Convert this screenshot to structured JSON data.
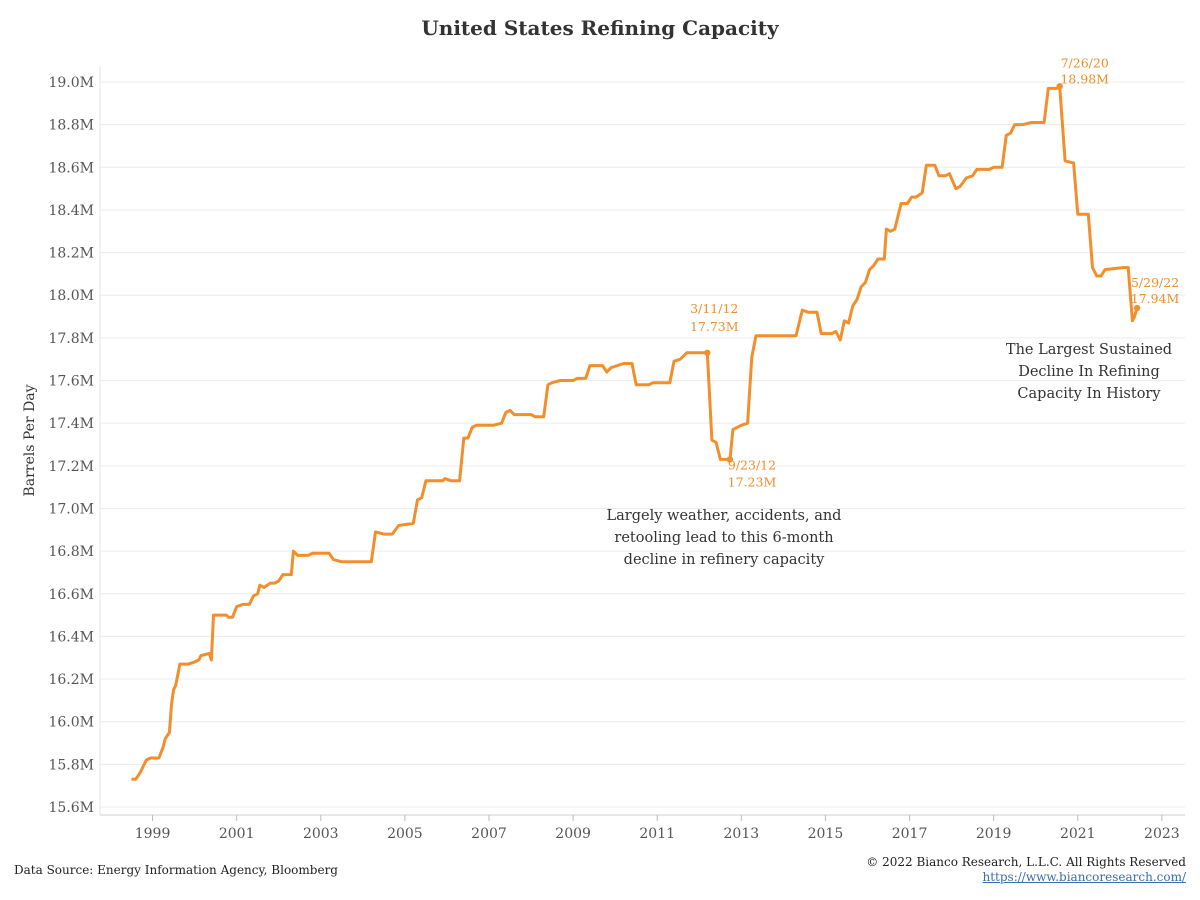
{
  "title": "United States Refining Capacity",
  "footer": {
    "source": "Data Source: Energy Information Agency, Bloomberg",
    "copyright": "© 2022 Bianco Research, L.L.C. All Rights Reserved",
    "url": "https://www.biancoresearch.com/"
  },
  "chart_data": {
    "type": "line",
    "title": "United States Refining Capacity",
    "xlabel": "",
    "ylabel": "Barrels Per Day",
    "ylim": [
      15.6,
      19.0
    ],
    "xlim": [
      1997.75,
      2023.55
    ],
    "x_ticks": [
      1999,
      2001,
      2003,
      2005,
      2007,
      2009,
      2011,
      2013,
      2015,
      2017,
      2019,
      2021,
      2023
    ],
    "y_ticks": [
      15.6,
      15.8,
      16.0,
      16.2,
      16.4,
      16.6,
      16.8,
      17.0,
      17.2,
      17.4,
      17.6,
      17.8,
      18.0,
      18.2,
      18.4,
      18.6,
      18.8,
      19.0
    ],
    "y_tick_labels": [
      "15.6M",
      "15.8M",
      "16.0M",
      "16.2M",
      "16.4M",
      "16.6M",
      "16.8M",
      "17.0M",
      "17.2M",
      "17.4M",
      "17.6M",
      "17.8M",
      "18.0M",
      "18.2M",
      "18.4M",
      "18.6M",
      "18.8M",
      "19.0M"
    ],
    "grid": true,
    "color": "#f28e2b",
    "series": [
      {
        "name": "",
        "points": [
          [
            1998.5,
            15.73
          ],
          [
            1998.6,
            15.73
          ],
          [
            1998.7,
            15.76
          ],
          [
            1998.85,
            15.82
          ],
          [
            1998.95,
            15.83
          ],
          [
            1999.15,
            15.83
          ],
          [
            1999.25,
            15.88
          ],
          [
            1999.3,
            15.92
          ],
          [
            1999.4,
            15.95
          ],
          [
            1999.45,
            16.08
          ],
          [
            1999.5,
            16.15
          ],
          [
            1999.55,
            16.17
          ],
          [
            1999.65,
            16.27
          ],
          [
            1999.85,
            16.27
          ],
          [
            2000.0,
            16.28
          ],
          [
            2000.1,
            16.29
          ],
          [
            2000.15,
            16.31
          ],
          [
            2000.35,
            16.32
          ],
          [
            2000.4,
            16.29
          ],
          [
            2000.45,
            16.5
          ],
          [
            2000.75,
            16.5
          ],
          [
            2000.8,
            16.49
          ],
          [
            2000.9,
            16.49
          ],
          [
            2001.0,
            16.54
          ],
          [
            2001.15,
            16.55
          ],
          [
            2001.3,
            16.55
          ],
          [
            2001.4,
            16.59
          ],
          [
            2001.5,
            16.6
          ],
          [
            2001.55,
            16.64
          ],
          [
            2001.65,
            16.63
          ],
          [
            2001.8,
            16.65
          ],
          [
            2001.9,
            16.65
          ],
          [
            2002.0,
            16.66
          ],
          [
            2002.1,
            16.69
          ],
          [
            2002.3,
            16.69
          ],
          [
            2002.35,
            16.8
          ],
          [
            2002.45,
            16.78
          ],
          [
            2002.7,
            16.78
          ],
          [
            2002.8,
            16.79
          ],
          [
            2003.2,
            16.79
          ],
          [
            2003.3,
            16.76
          ],
          [
            2003.5,
            16.75
          ],
          [
            2004.1,
            16.75
          ],
          [
            2004.2,
            16.75
          ],
          [
            2004.3,
            16.89
          ],
          [
            2004.5,
            16.88
          ],
          [
            2004.7,
            16.88
          ],
          [
            2004.85,
            16.92
          ],
          [
            2005.2,
            16.93
          ],
          [
            2005.3,
            17.04
          ],
          [
            2005.4,
            17.05
          ],
          [
            2005.5,
            17.13
          ],
          [
            2005.9,
            17.13
          ],
          [
            2005.95,
            17.14
          ],
          [
            2006.1,
            17.13
          ],
          [
            2006.3,
            17.13
          ],
          [
            2006.4,
            17.33
          ],
          [
            2006.5,
            17.33
          ],
          [
            2006.6,
            17.38
          ],
          [
            2006.7,
            17.39
          ],
          [
            2007.0,
            17.39
          ],
          [
            2007.1,
            17.39
          ],
          [
            2007.3,
            17.4
          ],
          [
            2007.4,
            17.45
          ],
          [
            2007.5,
            17.46
          ],
          [
            2007.6,
            17.44
          ],
          [
            2008.0,
            17.44
          ],
          [
            2008.1,
            17.43
          ],
          [
            2008.3,
            17.43
          ],
          [
            2008.4,
            17.58
          ],
          [
            2008.5,
            17.59
          ],
          [
            2008.7,
            17.6
          ],
          [
            2009.0,
            17.6
          ],
          [
            2009.1,
            17.61
          ],
          [
            2009.3,
            17.61
          ],
          [
            2009.4,
            17.67
          ],
          [
            2009.7,
            17.67
          ],
          [
            2009.8,
            17.64
          ],
          [
            2009.9,
            17.66
          ],
          [
            2010.2,
            17.68
          ],
          [
            2010.4,
            17.68
          ],
          [
            2010.5,
            17.58
          ],
          [
            2010.8,
            17.58
          ],
          [
            2010.9,
            17.59
          ],
          [
            2011.3,
            17.59
          ],
          [
            2011.4,
            17.69
          ],
          [
            2011.55,
            17.7
          ],
          [
            2011.7,
            17.73
          ],
          [
            2012.19,
            17.73
          ],
          [
            2012.3,
            17.32
          ],
          [
            2012.4,
            17.31
          ],
          [
            2012.5,
            17.23
          ],
          [
            2012.73,
            17.23
          ],
          [
            2012.8,
            17.37
          ],
          [
            2012.9,
            17.38
          ],
          [
            2013.0,
            17.39
          ],
          [
            2013.15,
            17.4
          ],
          [
            2013.25,
            17.71
          ],
          [
            2013.35,
            17.81
          ],
          [
            2013.5,
            17.81
          ],
          [
            2013.7,
            17.81
          ],
          [
            2013.9,
            17.81
          ],
          [
            2014.3,
            17.81
          ],
          [
            2014.45,
            17.93
          ],
          [
            2014.6,
            17.92
          ],
          [
            2014.8,
            17.92
          ],
          [
            2014.9,
            17.82
          ],
          [
            2015.15,
            17.82
          ],
          [
            2015.25,
            17.83
          ],
          [
            2015.35,
            17.79
          ],
          [
            2015.45,
            17.88
          ],
          [
            2015.55,
            17.87
          ],
          [
            2015.65,
            17.95
          ],
          [
            2015.75,
            17.98
          ],
          [
            2015.85,
            18.04
          ],
          [
            2015.95,
            18.06
          ],
          [
            2016.05,
            18.12
          ],
          [
            2016.15,
            18.14
          ],
          [
            2016.25,
            18.17
          ],
          [
            2016.4,
            18.17
          ],
          [
            2016.45,
            18.31
          ],
          [
            2016.55,
            18.3
          ],
          [
            2016.65,
            18.31
          ],
          [
            2016.8,
            18.43
          ],
          [
            2016.95,
            18.43
          ],
          [
            2017.05,
            18.46
          ],
          [
            2017.15,
            18.46
          ],
          [
            2017.3,
            18.48
          ],
          [
            2017.4,
            18.61
          ],
          [
            2017.6,
            18.61
          ],
          [
            2017.7,
            18.56
          ],
          [
            2017.85,
            18.56
          ],
          [
            2017.95,
            18.57
          ],
          [
            2018.1,
            18.5
          ],
          [
            2018.2,
            18.51
          ],
          [
            2018.35,
            18.55
          ],
          [
            2018.5,
            18.56
          ],
          [
            2018.6,
            18.59
          ],
          [
            2018.9,
            18.59
          ],
          [
            2019.0,
            18.6
          ],
          [
            2019.2,
            18.6
          ],
          [
            2019.3,
            18.75
          ],
          [
            2019.4,
            18.76
          ],
          [
            2019.5,
            18.8
          ],
          [
            2019.7,
            18.8
          ],
          [
            2019.9,
            18.81
          ],
          [
            2020.1,
            18.81
          ],
          [
            2020.2,
            18.81
          ],
          [
            2020.3,
            18.97
          ],
          [
            2020.5,
            18.97
          ],
          [
            2020.57,
            18.98
          ],
          [
            2020.7,
            18.63
          ],
          [
            2020.9,
            18.62
          ],
          [
            2021.0,
            18.38
          ],
          [
            2021.25,
            18.38
          ],
          [
            2021.35,
            18.13
          ],
          [
            2021.45,
            18.09
          ],
          [
            2021.55,
            18.09
          ],
          [
            2021.65,
            18.12
          ],
          [
            2022.1,
            18.13
          ],
          [
            2022.2,
            18.13
          ],
          [
            2022.3,
            17.88
          ],
          [
            2022.35,
            17.9
          ],
          [
            2022.41,
            17.94
          ]
        ]
      }
    ],
    "markers": [
      {
        "x": 2012.19,
        "y": 17.73,
        "label_date": "3/11/12",
        "label_value": "17.73M"
      },
      {
        "x": 2012.73,
        "y": 17.23,
        "label_date": "9/23/12",
        "label_value": "17.23M"
      },
      {
        "x": 2020.57,
        "y": 18.98,
        "label_date": "7/26/20",
        "label_value": "18.98M"
      },
      {
        "x": 2022.41,
        "y": 17.94,
        "label_date": "5/29/22",
        "label_value": "17.94M"
      }
    ],
    "annotations": [
      {
        "lines": [
          "Largely weather, accidents, and",
          "retooling lead to this 6-month",
          "decline in refinery capacity"
        ]
      },
      {
        "lines": [
          "The Largest Sustained",
          "Decline In Refining",
          "Capacity In History"
        ]
      }
    ]
  }
}
